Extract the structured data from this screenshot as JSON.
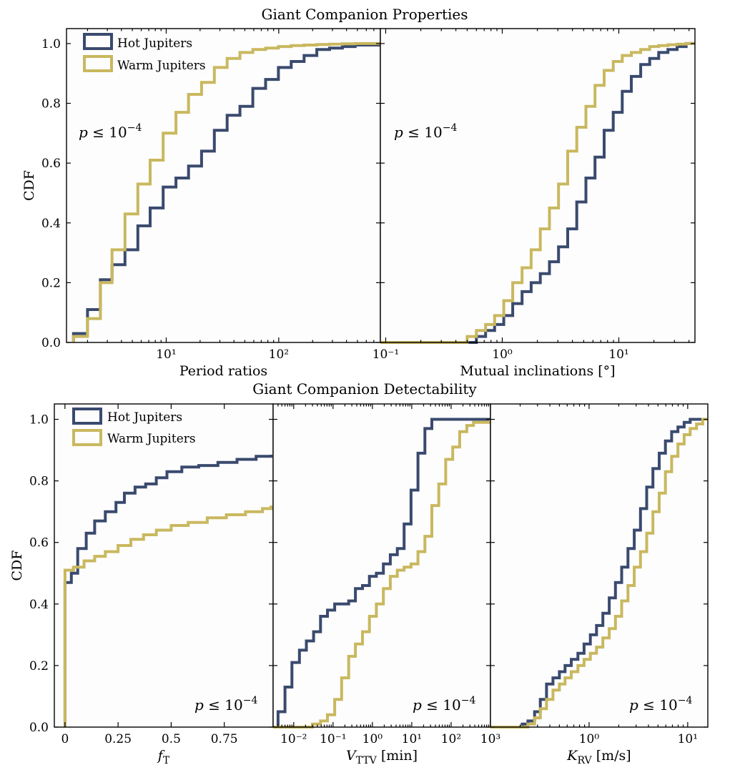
{
  "colors": {
    "hot": "#3a4a6e",
    "warm": "#c9b85f"
  },
  "chart_data": [
    {
      "type": "line",
      "group_title": "Giant Companion Properties",
      "xlabel": "Period ratios",
      "ylabel": "CDF",
      "xscale": "log",
      "xlim": [
        1.3,
        800
      ],
      "ylim": [
        0,
        1.05
      ],
      "annotation": "p ≤ 10−4",
      "legend": "top-left",
      "x_ticks": [
        {
          "v": 10,
          "label": "10¹"
        },
        {
          "v": 100,
          "label": "10²"
        }
      ],
      "y_ticks": [
        "0.0",
        "0.2",
        "0.4",
        "0.6",
        "0.8",
        "1.0"
      ],
      "series": [
        {
          "name": "Hot Jupiters",
          "color_key": "hot",
          "x": [
            1.5,
            2.0,
            2.6,
            3.3,
            4.3,
            5.6,
            7.2,
            9.4,
            12.2,
            15.8,
            20.6,
            26.8,
            34.8,
            45.2,
            58.8,
            76.4,
            99.3,
            129,
            168,
            218,
            283,
            368,
            478,
            800
          ],
          "y": [
            0.03,
            0.11,
            0.21,
            0.26,
            0.31,
            0.39,
            0.45,
            0.52,
            0.55,
            0.59,
            0.64,
            0.71,
            0.76,
            0.79,
            0.85,
            0.88,
            0.92,
            0.94,
            0.96,
            0.98,
            0.985,
            0.99,
            0.995,
            1.0
          ]
        },
        {
          "name": "Warm Jupiters",
          "color_key": "warm",
          "x": [
            1.5,
            2.0,
            2.6,
            3.3,
            4.3,
            5.6,
            7.2,
            9.4,
            12.2,
            15.8,
            20.6,
            26.8,
            34.8,
            45.2,
            58.8,
            76.4,
            99.3,
            129,
            168,
            218,
            283,
            368,
            478,
            800
          ],
          "y": [
            0.02,
            0.08,
            0.2,
            0.31,
            0.43,
            0.53,
            0.61,
            0.7,
            0.77,
            0.83,
            0.87,
            0.92,
            0.95,
            0.97,
            0.98,
            0.985,
            0.99,
            0.993,
            0.995,
            0.997,
            0.998,
            0.999,
            1.0,
            1.0
          ]
        }
      ]
    },
    {
      "type": "line",
      "group_title": "Giant Companion Properties",
      "xlabel": "Mutual inclinations [°]",
      "ylabel": "",
      "xscale": "log",
      "xlim": [
        0.09,
        45
      ],
      "ylim": [
        0,
        1.05
      ],
      "annotation": "p ≤ 10−4",
      "x_ticks": [
        {
          "v": 0.1,
          "label": "10⁻¹"
        },
        {
          "v": 1,
          "label": "10⁰"
        },
        {
          "v": 10,
          "label": "10¹"
        }
      ],
      "series": [
        {
          "name": "Hot Jupiters",
          "color_key": "hot",
          "x": [
            0.09,
            0.6,
            0.72,
            0.86,
            1.03,
            1.23,
            1.48,
            1.77,
            2.12,
            2.54,
            3.04,
            3.64,
            4.36,
            5.22,
            6.25,
            7.48,
            8.96,
            10.7,
            12.8,
            15.4,
            18.4,
            22.0,
            26.4,
            31.6,
            37.8,
            45
          ],
          "y": [
            0.0,
            0.02,
            0.04,
            0.06,
            0.09,
            0.13,
            0.17,
            0.2,
            0.23,
            0.27,
            0.32,
            0.38,
            0.47,
            0.55,
            0.62,
            0.71,
            0.77,
            0.84,
            0.89,
            0.93,
            0.95,
            0.97,
            0.98,
            0.99,
            1.0,
            1.0
          ]
        },
        {
          "name": "Warm Jupiters",
          "color_key": "warm",
          "x": [
            0.09,
            0.5,
            0.6,
            0.72,
            0.86,
            1.03,
            1.23,
            1.48,
            1.77,
            2.12,
            2.54,
            3.04,
            3.64,
            4.36,
            5.22,
            6.25,
            7.48,
            8.96,
            10.7,
            12.8,
            15.4,
            18.4,
            22.0,
            26.4,
            31.6,
            37.8,
            45
          ],
          "y": [
            0.0,
            0.02,
            0.04,
            0.06,
            0.09,
            0.14,
            0.2,
            0.25,
            0.31,
            0.38,
            0.45,
            0.53,
            0.64,
            0.72,
            0.79,
            0.86,
            0.91,
            0.94,
            0.96,
            0.97,
            0.98,
            0.99,
            0.993,
            0.996,
            0.998,
            1.0,
            1.0
          ]
        }
      ]
    },
    {
      "type": "line",
      "group_title": "Giant Companion Detectability",
      "xlabel": "fT",
      "ylabel": "CDF",
      "xscale": "linear",
      "xlim": [
        -0.05,
        0.98
      ],
      "ylim": [
        0,
        1.05
      ],
      "annotation": "p ≤ 10−4",
      "legend": "top-left",
      "x_ticks": [
        {
          "v": 0,
          "label": "0"
        },
        {
          "v": 0.25,
          "label": "0.25"
        },
        {
          "v": 0.5,
          "label": "0.5"
        },
        {
          "v": 0.75,
          "label": "0.75"
        }
      ],
      "y_ticks": [
        "0.0",
        "0.2",
        "0.4",
        "0.6",
        "0.8",
        "1.0"
      ],
      "series": [
        {
          "name": "Hot Jupiters",
          "color_key": "hot",
          "x": [
            0.0,
            0.03,
            0.06,
            0.1,
            0.14,
            0.19,
            0.24,
            0.28,
            0.33,
            0.38,
            0.43,
            0.48,
            0.55,
            0.63,
            0.72,
            0.81,
            0.9,
            0.97
          ],
          "y": [
            0.47,
            0.5,
            0.58,
            0.63,
            0.67,
            0.7,
            0.73,
            0.76,
            0.78,
            0.79,
            0.81,
            0.83,
            0.845,
            0.85,
            0.86,
            0.87,
            0.88,
            0.885
          ]
        },
        {
          "name": "Warm Jupiters",
          "color_key": "warm",
          "x": [
            0.0,
            0.04,
            0.09,
            0.14,
            0.19,
            0.25,
            0.31,
            0.37,
            0.43,
            0.5,
            0.58,
            0.67,
            0.76,
            0.85,
            0.93,
            0.97
          ],
          "y": [
            0.51,
            0.52,
            0.54,
            0.555,
            0.57,
            0.59,
            0.61,
            0.625,
            0.64,
            0.655,
            0.665,
            0.68,
            0.69,
            0.7,
            0.71,
            0.72
          ]
        }
      ]
    },
    {
      "type": "line",
      "group_title": "Giant Companion Detectability",
      "xlabel": "VTTV [min]",
      "ylabel": "",
      "xscale": "log",
      "xlim": [
        0.003,
        1000
      ],
      "ylim": [
        0,
        1.05
      ],
      "annotation": "p ≤ 10−4",
      "x_ticks": [
        {
          "v": 0.01,
          "label": "10⁻²"
        },
        {
          "v": 0.1,
          "label": "10⁻¹"
        },
        {
          "v": 1,
          "label": "10⁰"
        },
        {
          "v": 10,
          "label": "10¹"
        },
        {
          "v": 100,
          "label": "10²"
        },
        {
          "v": 1000,
          "label": "10³"
        }
      ],
      "series": [
        {
          "name": "Hot Jupiters",
          "color_key": "hot",
          "x": [
            0.003,
            0.004,
            0.006,
            0.009,
            0.014,
            0.021,
            0.032,
            0.048,
            0.072,
            0.11,
            0.165,
            0.25,
            0.37,
            0.56,
            0.84,
            1.26,
            1.9,
            2.85,
            4.3,
            6.4,
            9.6,
            14.4,
            21.6,
            32.4,
            48.6,
            1000
          ],
          "y": [
            0.0,
            0.05,
            0.13,
            0.21,
            0.25,
            0.28,
            0.31,
            0.36,
            0.38,
            0.4,
            0.4,
            0.41,
            0.45,
            0.46,
            0.49,
            0.5,
            0.53,
            0.56,
            0.58,
            0.66,
            0.77,
            0.89,
            0.97,
            1.0,
            1.0,
            1.0
          ]
        },
        {
          "name": "Warm Jupiters",
          "color_key": "warm",
          "x": [
            0.003,
            0.03,
            0.048,
            0.072,
            0.11,
            0.165,
            0.25,
            0.37,
            0.56,
            0.84,
            1.26,
            1.9,
            2.85,
            4.3,
            6.4,
            9.6,
            14.4,
            21.6,
            32.4,
            48.6,
            73,
            110,
            165,
            250,
            370,
            1000
          ],
          "y": [
            0.0,
            0.01,
            0.02,
            0.04,
            0.09,
            0.16,
            0.23,
            0.27,
            0.31,
            0.36,
            0.4,
            0.45,
            0.49,
            0.51,
            0.52,
            0.53,
            0.57,
            0.62,
            0.72,
            0.79,
            0.87,
            0.91,
            0.96,
            0.98,
            0.99,
            1.0
          ]
        }
      ]
    },
    {
      "type": "line",
      "group_title": "Giant Companion Detectability",
      "xlabel": "KRV [m/s]",
      "ylabel": "",
      "xscale": "log",
      "xlim": [
        0.1,
        16
      ],
      "ylim": [
        0,
        1.05
      ],
      "annotation": "p ≤ 10−4",
      "x_ticks": [
        {
          "v": 1,
          "label": "10⁰"
        },
        {
          "v": 10,
          "label": "10¹"
        }
      ],
      "series": [
        {
          "name": "Hot Jupiters",
          "color_key": "hot",
          "x": [
            0.1,
            0.21,
            0.24,
            0.28,
            0.32,
            0.37,
            0.43,
            0.5,
            0.57,
            0.66,
            0.77,
            0.89,
            1.03,
            1.19,
            1.38,
            1.6,
            1.85,
            2.14,
            2.48,
            2.87,
            3.32,
            3.84,
            4.44,
            5.14,
            5.95,
            6.88,
            7.96,
            9.21,
            10.6,
            12.3,
            16
          ],
          "y": [
            0.0,
            0.01,
            0.02,
            0.05,
            0.09,
            0.14,
            0.16,
            0.18,
            0.2,
            0.22,
            0.24,
            0.27,
            0.3,
            0.33,
            0.37,
            0.42,
            0.47,
            0.52,
            0.58,
            0.64,
            0.71,
            0.78,
            0.84,
            0.89,
            0.93,
            0.96,
            0.975,
            0.99,
            1.0,
            1.0,
            1.0
          ]
        },
        {
          "name": "Warm Jupiters",
          "color_key": "warm",
          "x": [
            0.1,
            0.24,
            0.28,
            0.32,
            0.37,
            0.43,
            0.5,
            0.57,
            0.66,
            0.77,
            0.89,
            1.03,
            1.19,
            1.38,
            1.6,
            1.85,
            2.14,
            2.48,
            2.87,
            3.32,
            3.84,
            4.44,
            5.14,
            5.95,
            6.88,
            7.96,
            9.21,
            10.6,
            12.3,
            14.2,
            16
          ],
          "y": [
            0.0,
            0.01,
            0.03,
            0.06,
            0.09,
            0.12,
            0.14,
            0.16,
            0.18,
            0.2,
            0.22,
            0.24,
            0.26,
            0.29,
            0.32,
            0.36,
            0.41,
            0.46,
            0.52,
            0.57,
            0.63,
            0.7,
            0.76,
            0.83,
            0.88,
            0.92,
            0.95,
            0.97,
            0.985,
            1.0,
            1.0
          ]
        }
      ]
    }
  ],
  "labels": {
    "top_title": "Giant Companion Properties",
    "bottom_title": "Giant Companion Detectability",
    "legend_hot": "Hot Jupiters",
    "legend_warm": "Warm Jupiters"
  }
}
